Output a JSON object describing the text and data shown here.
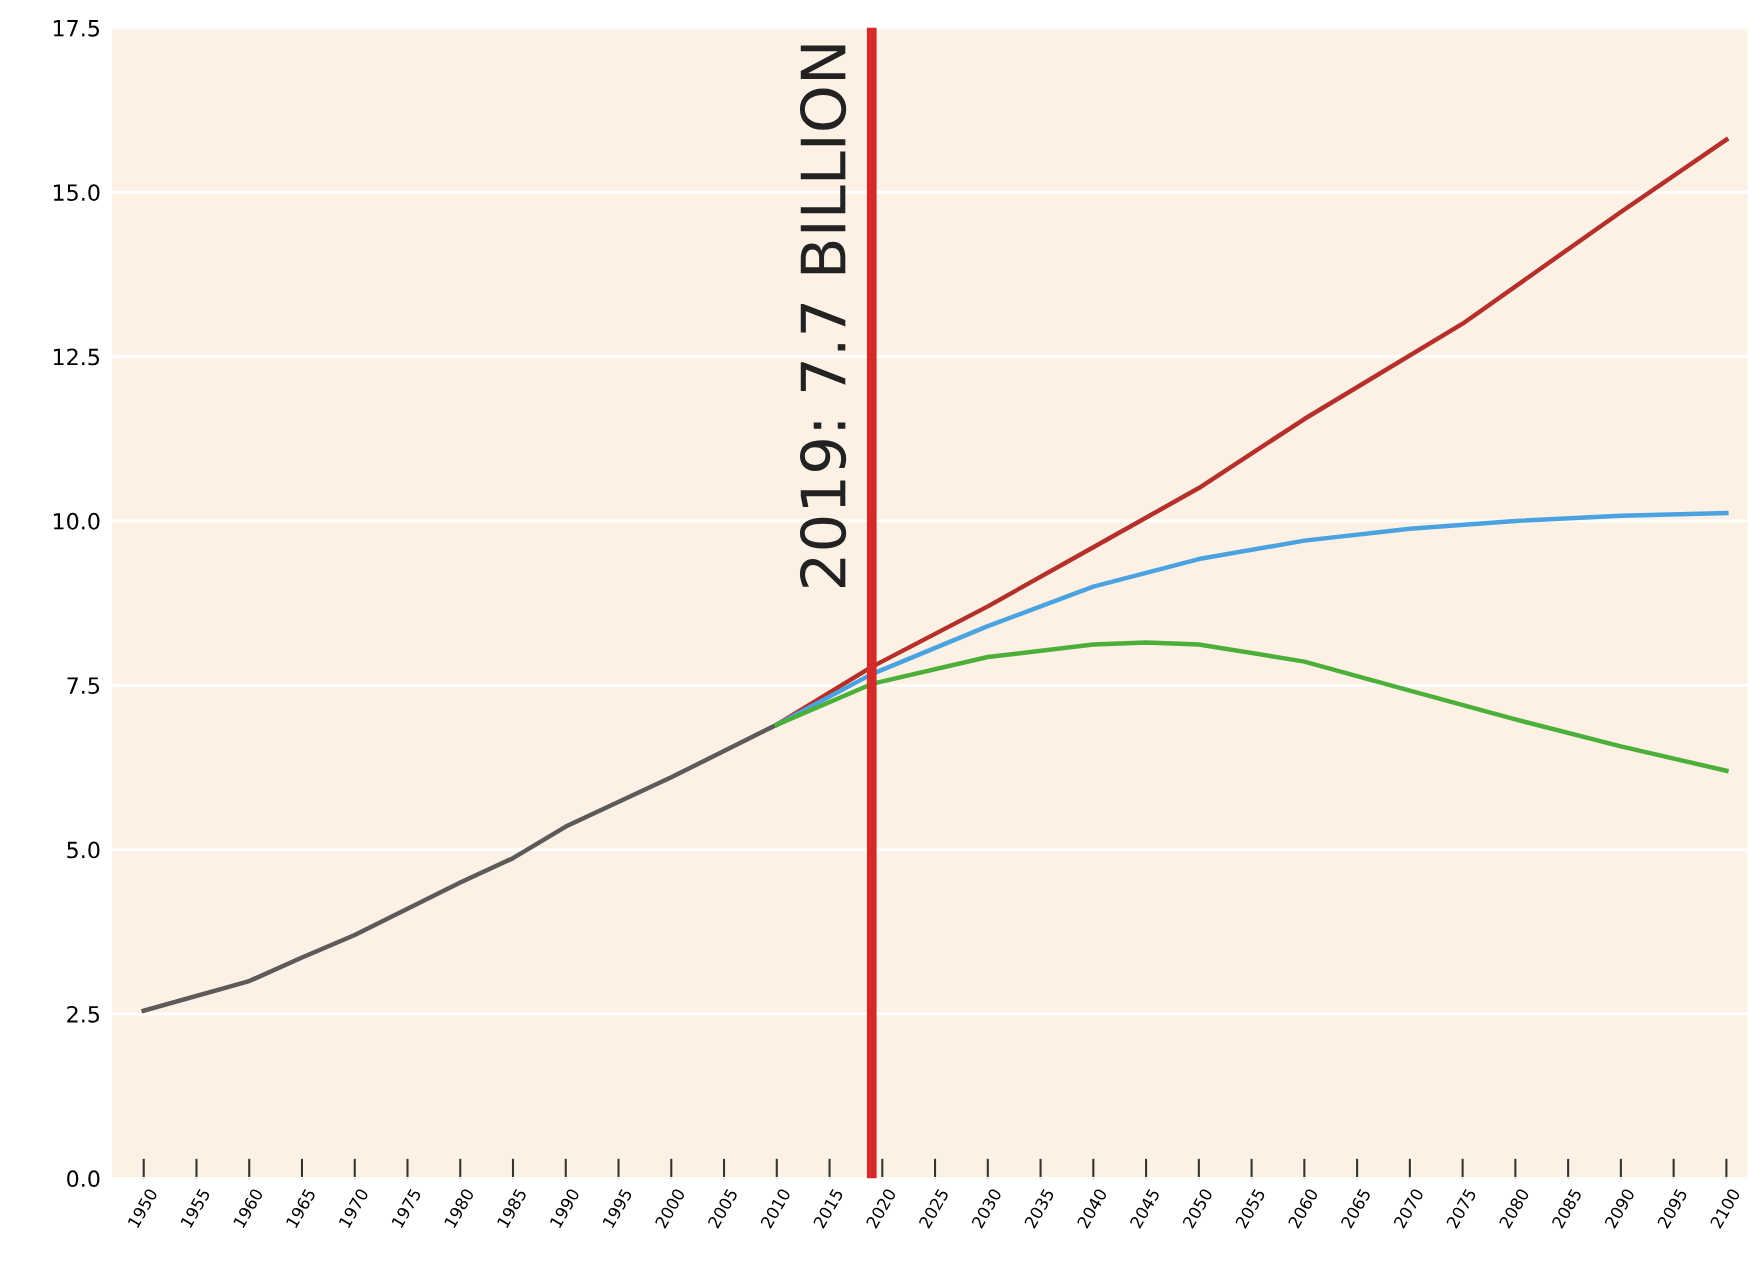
{
  "chart_data": {
    "type": "line",
    "xlim": [
      1947,
      2102
    ],
    "xticks": [
      1950,
      1955,
      1960,
      1965,
      1970,
      1975,
      1980,
      1985,
      1990,
      1995,
      2000,
      2005,
      2010,
      2015,
      2020,
      2025,
      2030,
      2035,
      2040,
      2045,
      2050,
      2055,
      2060,
      2065,
      2070,
      2075,
      2080,
      2085,
      2090,
      2095,
      2100
    ],
    "ylim": [
      0,
      17.5
    ],
    "yticks": [
      {
        "value": 0,
        "label": "0.0"
      },
      {
        "value": 2.5,
        "label": "2.5"
      },
      {
        "value": 5,
        "label": "5.0"
      },
      {
        "value": 7.5,
        "label": "7.5"
      },
      {
        "value": 10,
        "label": "10.0"
      },
      {
        "value": 12.5,
        "label": "12.5"
      },
      {
        "value": 15,
        "label": "15.0"
      },
      {
        "value": 17.5,
        "label": "17.5"
      }
    ],
    "grid": "y",
    "legend": false,
    "marker": "none",
    "line_style": "solid",
    "series": [
      {
        "color": "#5c5a5a",
        "x": [
          1950,
          1960,
          1965,
          1970,
          1980,
          1985,
          1990,
          2000,
          2010
        ],
        "values": [
          2.55,
          3.0,
          3.36,
          3.7,
          4.5,
          4.87,
          5.35,
          6.1,
          6.9
        ]
      },
      {
        "color": "#b5302a",
        "x": [
          2010,
          2019,
          2030,
          2040,
          2050,
          2060,
          2075,
          2090,
          2100
        ],
        "values": [
          6.9,
          7.78,
          8.7,
          9.6,
          10.5,
          11.55,
          13.0,
          14.7,
          15.8
        ]
      },
      {
        "color": "#4aa3e0",
        "x": [
          2010,
          2019,
          2030,
          2040,
          2050,
          2060,
          2070,
          2080,
          2090,
          2100
        ],
        "values": [
          6.9,
          7.67,
          8.4,
          9.0,
          9.42,
          9.7,
          9.88,
          10.0,
          10.08,
          10.12
        ]
      },
      {
        "color": "#4caf3a",
        "x": [
          2010,
          2019,
          2030,
          2040,
          2045,
          2050,
          2060,
          2070,
          2080,
          2090,
          2100
        ],
        "values": [
          6.9,
          7.52,
          7.93,
          8.12,
          8.15,
          8.12,
          7.86,
          7.42,
          6.98,
          6.57,
          6.2
        ]
      }
    ],
    "ref_lines": [
      {
        "axis": "x",
        "value": 2019,
        "label": "2019: 7.7 BILLION",
        "color": "#d42a2a"
      }
    ]
  }
}
